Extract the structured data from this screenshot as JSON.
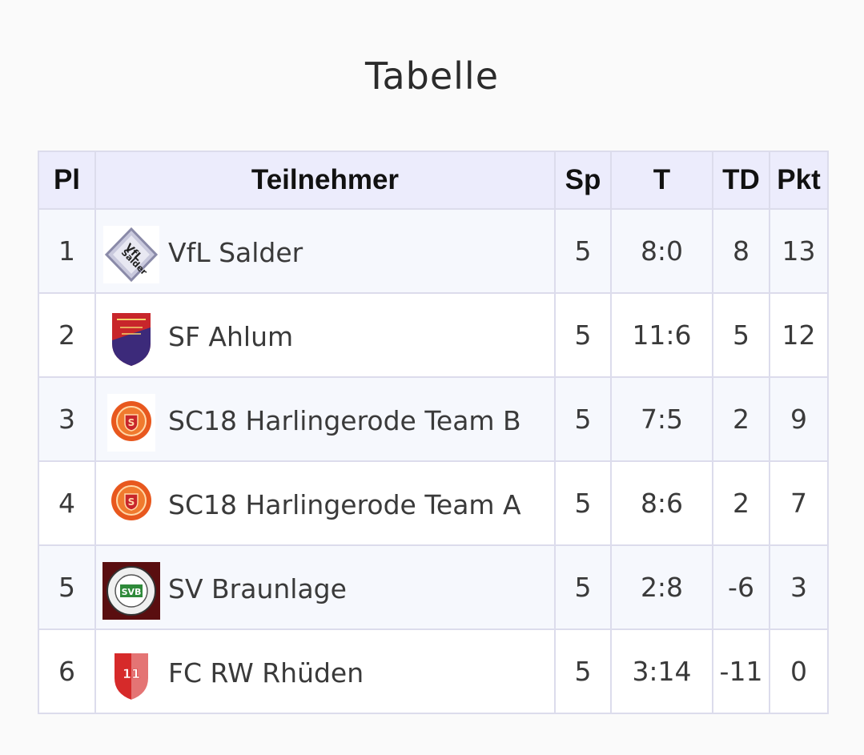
{
  "page": {
    "title": "Tabelle"
  },
  "table": {
    "headers": {
      "pos": "Pl",
      "team": "Teilnehmer",
      "played": "Sp",
      "goals": "T",
      "diff": "TD",
      "points": "Pkt"
    },
    "rows": [
      {
        "pos": "1",
        "team": "VfL Salder",
        "logo": "vfl-salder-logo",
        "played": "5",
        "goals": "8:0",
        "diff": "8",
        "points": "13"
      },
      {
        "pos": "2",
        "team": "SF Ahlum",
        "logo": "sf-ahlum-logo",
        "played": "5",
        "goals": "11:6",
        "diff": "5",
        "points": "12"
      },
      {
        "pos": "3",
        "team": "SC18 Harlingerode Team B",
        "logo": "sc18-harlingerode-logo",
        "played": "5",
        "goals": "7:5",
        "diff": "2",
        "points": "9"
      },
      {
        "pos": "4",
        "team": "SC18 Harlingerode Team A",
        "logo": "sc18-harlingerode-logo",
        "played": "5",
        "goals": "8:6",
        "diff": "2",
        "points": "7"
      },
      {
        "pos": "5",
        "team": "SV Braunlage",
        "logo": "sv-braunlage-logo",
        "played": "5",
        "goals": "2:8",
        "diff": "-6",
        "points": "3"
      },
      {
        "pos": "6",
        "team": "FC RW Rhüden",
        "logo": "fc-rw-rhueden-logo",
        "played": "5",
        "goals": "3:14",
        "diff": "-11",
        "points": "0"
      }
    ]
  },
  "colors": {
    "header_bg": "#ececfc",
    "row_alt_bg": "#f6f8fd",
    "border": "#dcdcec",
    "page_bg": "#fafafa"
  }
}
